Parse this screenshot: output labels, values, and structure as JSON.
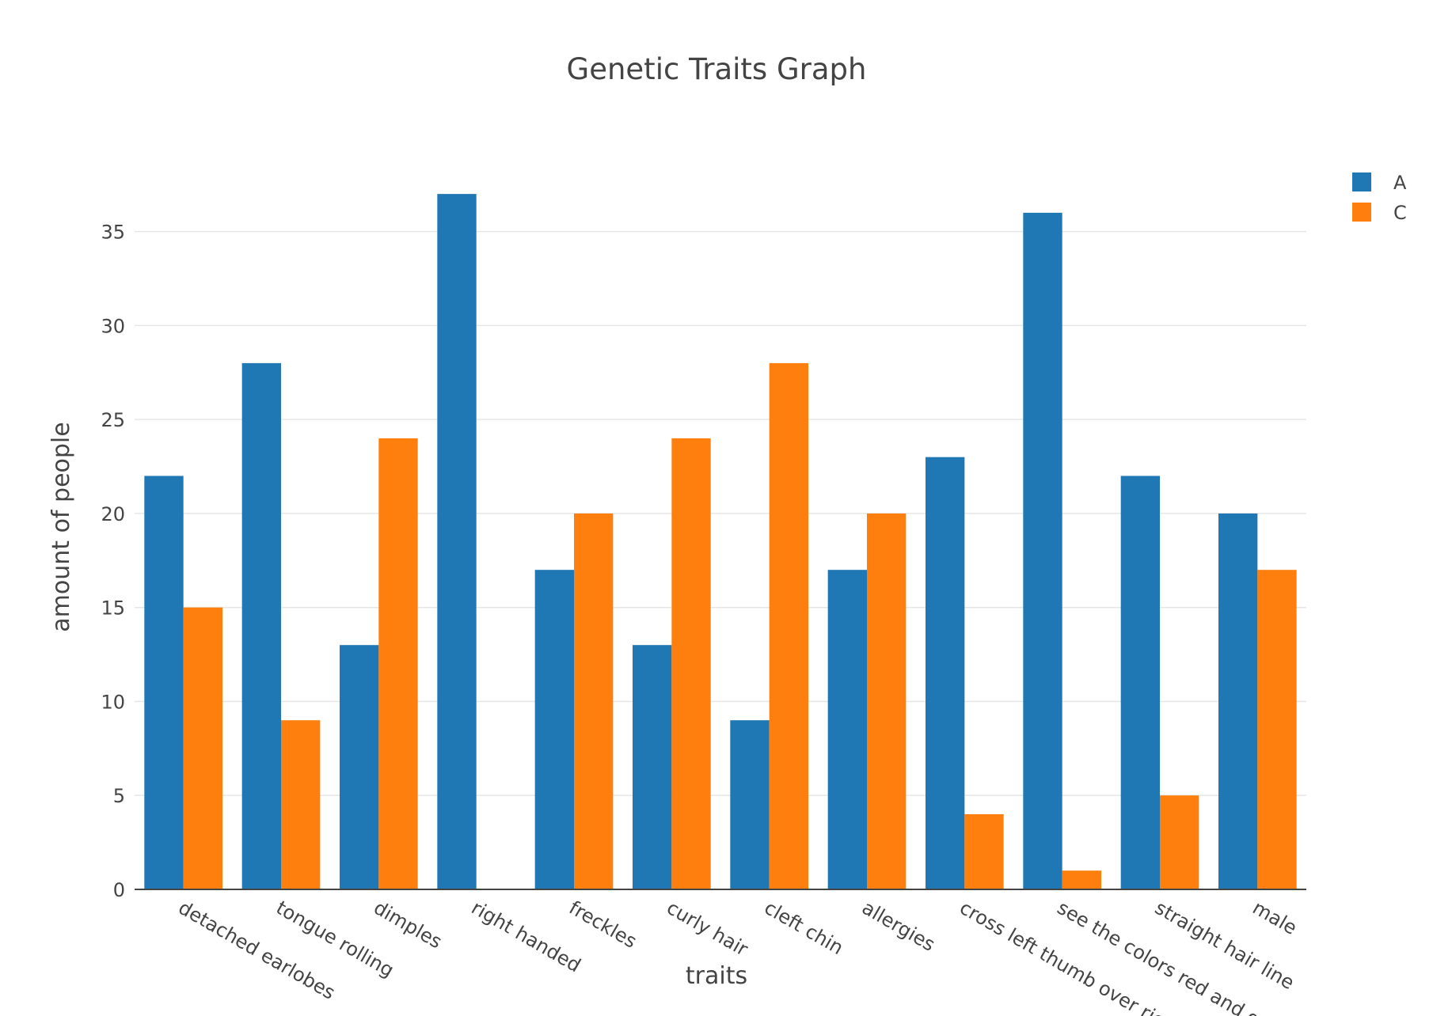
{
  "chart_data": {
    "type": "bar",
    "title": "Genetic Traits Graph",
    "xlabel": "traits",
    "ylabel": "amount of people",
    "categories": [
      "detached earlobes",
      "tongue rolling",
      "dimples",
      "right handed",
      "freckles",
      "curly hair",
      "cleft chin",
      "allergies",
      "cross left thumb over right",
      "see the colors red and green",
      "straight hair line",
      "male"
    ],
    "series": [
      {
        "name": "A",
        "color": "#1f77b4",
        "values": [
          22,
          28,
          13,
          37,
          17,
          13,
          9,
          17,
          23,
          36,
          22,
          20
        ]
      },
      {
        "name": "C",
        "color": "#ff7f0e",
        "values": [
          15,
          9,
          24,
          0,
          20,
          24,
          28,
          20,
          4,
          1,
          5,
          17
        ]
      }
    ],
    "ylim": [
      0,
      38.9
    ],
    "yticks": [
      0,
      5,
      10,
      15,
      20,
      25,
      30,
      35
    ],
    "grid": true,
    "legend": "top-right, outside plot"
  }
}
